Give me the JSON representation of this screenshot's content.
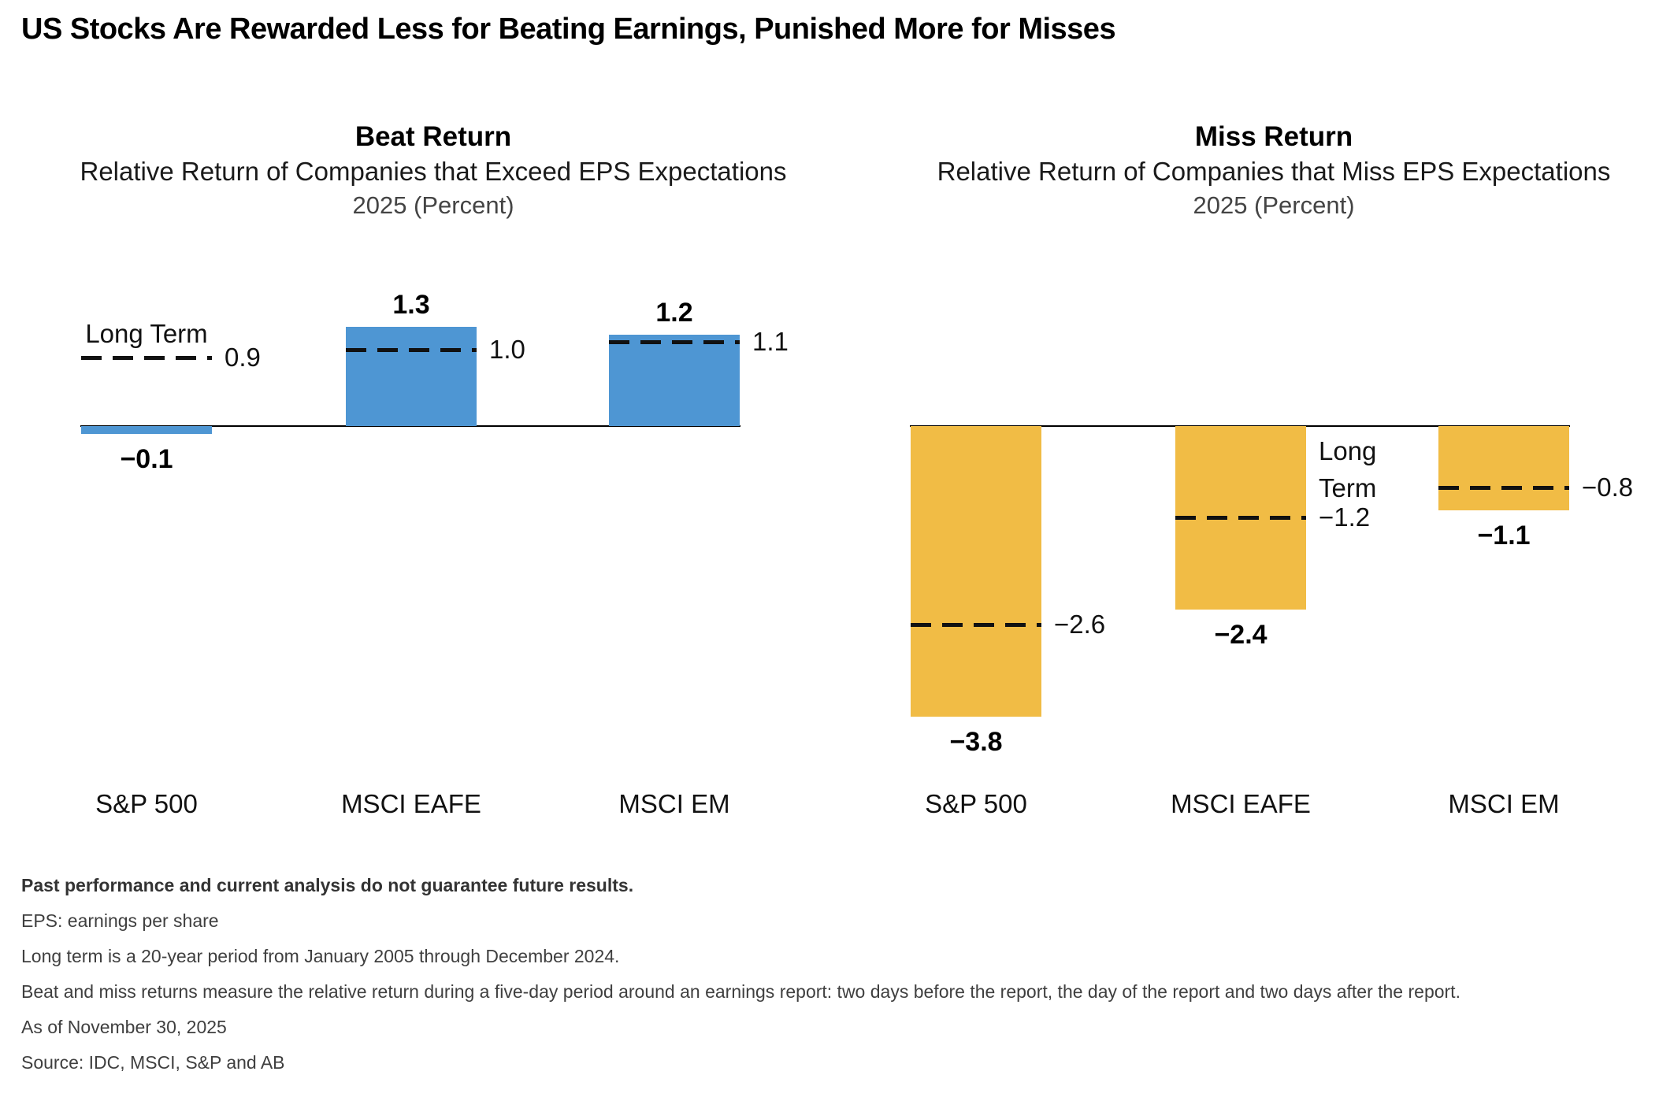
{
  "page_title": "US Stocks Are Rewarded Less for Beating Earnings, Punished More for Misses",
  "chart_data": [
    {
      "type": "bar",
      "title": "Beat Return",
      "subtitle": "Relative Return of Companies that Exceed EPS Expectations",
      "period_label": "2025 (Percent)",
      "categories": [
        "S&P 500",
        "MSCI EAFE",
        "MSCI EM"
      ],
      "values": [
        -0.1,
        1.3,
        1.2
      ],
      "value_labels": [
        "−0.1",
        "1.3",
        "1.2"
      ],
      "long_term_values": [
        0.9,
        1.0,
        1.1
      ],
      "long_term_labels": [
        "0.9",
        "1.0",
        "1.1"
      ],
      "long_term_annotation": "Long Term",
      "bar_color": "#4E96D3",
      "ylim": [
        -4.2,
        1.6
      ],
      "baseline": 0
    },
    {
      "type": "bar",
      "title": "Miss Return",
      "subtitle": "Relative Return of Companies that Miss EPS Expectations",
      "period_label": "2025 (Percent)",
      "categories": [
        "S&P 500",
        "MSCI EAFE",
        "MSCI EM"
      ],
      "values": [
        -3.8,
        -2.4,
        -1.1
      ],
      "value_labels": [
        "−3.8",
        "−2.4",
        "−1.1"
      ],
      "long_term_values": [
        -2.6,
        -1.2,
        -0.8
      ],
      "long_term_labels": [
        "−2.6",
        "−1.2",
        "−0.8"
      ],
      "long_term_annotation": "Long Term",
      "bar_color": "#F1BC45",
      "ylim": [
        -4.2,
        1.6
      ],
      "baseline": 0
    }
  ],
  "footnotes": {
    "disclaimer": "Past performance and current analysis do not guarantee future results.",
    "lines": [
      "EPS: earnings per share",
      "Long term is a 20-year period from January 2005 through December 2024.",
      "Beat and miss returns measure the relative return during a five-day period around an earnings report: two days before the report, the day of the report and two days after the report.",
      "As of November 30, 2025",
      "Source: IDC, MSCI, S&P and AB"
    ]
  }
}
